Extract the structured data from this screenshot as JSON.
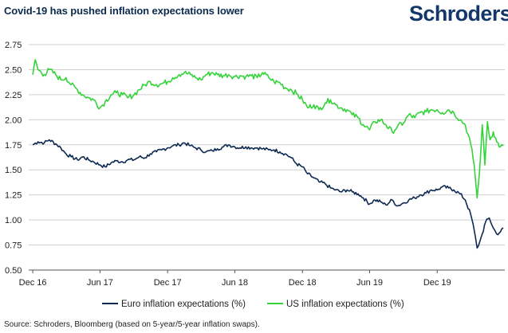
{
  "header": {
    "title": "Covid-19 has pushed inflation expectations lower",
    "logo_text": "Schroders"
  },
  "source": "Source: Schroders, Bloomberg (based on 5-year/5-year inflation swaps).",
  "colors": {
    "euro": "#0e2a52",
    "us": "#34d33a",
    "grid": "#cfcfcf",
    "axis": "#555555",
    "brand": "#14376a"
  },
  "chart_data": {
    "type": "line",
    "title": "Covid-19 has pushed inflation expectations lower",
    "xlabel": "",
    "ylabel": "",
    "ylim": [
      0.5,
      2.75
    ],
    "yticks": [
      "2.75",
      "2.50",
      "2.25",
      "2.00",
      "1.75",
      "1.50",
      "1.25",
      "1.00",
      "0.75",
      "0.50"
    ],
    "xticks": [
      "Dec 16",
      "Jun 17",
      "Dec 17",
      "Jun 18",
      "Dec 18",
      "Jun 19",
      "Dec 19"
    ],
    "x_range": [
      "2016-12",
      "2020-05"
    ],
    "grid": "horizontal",
    "legend_position": "bottom",
    "series": [
      {
        "name": "Euro inflation expectations (%)",
        "color": "#0e2a52",
        "points": [
          [
            "2016-12-01",
            1.75
          ],
          [
            "2016-12-15",
            1.78
          ],
          [
            "2017-01-01",
            1.77
          ],
          [
            "2017-01-15",
            1.8
          ],
          [
            "2017-02-01",
            1.76
          ],
          [
            "2017-02-15",
            1.72
          ],
          [
            "2017-03-01",
            1.66
          ],
          [
            "2017-03-15",
            1.63
          ],
          [
            "2017-04-01",
            1.6
          ],
          [
            "2017-04-15",
            1.63
          ],
          [
            "2017-05-01",
            1.6
          ],
          [
            "2017-05-15",
            1.58
          ],
          [
            "2017-06-01",
            1.55
          ],
          [
            "2017-06-15",
            1.53
          ],
          [
            "2017-07-01",
            1.57
          ],
          [
            "2017-07-15",
            1.59
          ],
          [
            "2017-08-01",
            1.58
          ],
          [
            "2017-08-15",
            1.6
          ],
          [
            "2017-09-01",
            1.6
          ],
          [
            "2017-09-15",
            1.63
          ],
          [
            "2017-10-01",
            1.62
          ],
          [
            "2017-10-15",
            1.66
          ],
          [
            "2017-11-01",
            1.68
          ],
          [
            "2017-11-15",
            1.7
          ],
          [
            "2017-12-01",
            1.72
          ],
          [
            "2017-12-15",
            1.74
          ],
          [
            "2018-01-01",
            1.75
          ],
          [
            "2018-01-15",
            1.77
          ],
          [
            "2018-02-01",
            1.74
          ],
          [
            "2018-02-15",
            1.72
          ],
          [
            "2018-03-01",
            1.7
          ],
          [
            "2018-03-15",
            1.68
          ],
          [
            "2018-04-01",
            1.69
          ],
          [
            "2018-04-15",
            1.71
          ],
          [
            "2018-05-01",
            1.73
          ],
          [
            "2018-05-15",
            1.75
          ],
          [
            "2018-06-01",
            1.73
          ],
          [
            "2018-06-15",
            1.72
          ],
          [
            "2018-07-01",
            1.73
          ],
          [
            "2018-07-15",
            1.72
          ],
          [
            "2018-08-01",
            1.72
          ],
          [
            "2018-08-15",
            1.71
          ],
          [
            "2018-09-01",
            1.7
          ],
          [
            "2018-09-15",
            1.7
          ],
          [
            "2018-10-01",
            1.68
          ],
          [
            "2018-10-15",
            1.66
          ],
          [
            "2018-11-01",
            1.62
          ],
          [
            "2018-11-15",
            1.56
          ],
          [
            "2018-12-01",
            1.53
          ],
          [
            "2018-12-15",
            1.46
          ],
          [
            "2019-01-01",
            1.42
          ],
          [
            "2019-01-15",
            1.38
          ],
          [
            "2019-02-01",
            1.36
          ],
          [
            "2019-02-15",
            1.32
          ],
          [
            "2019-03-01",
            1.3
          ],
          [
            "2019-03-15",
            1.28
          ],
          [
            "2019-04-01",
            1.3
          ],
          [
            "2019-04-15",
            1.28
          ],
          [
            "2019-05-01",
            1.26
          ],
          [
            "2019-05-15",
            1.22
          ],
          [
            "2019-06-01",
            1.16
          ],
          [
            "2019-06-15",
            1.2
          ],
          [
            "2019-07-01",
            1.18
          ],
          [
            "2019-07-15",
            1.15
          ],
          [
            "2019-08-01",
            1.2
          ],
          [
            "2019-08-15",
            1.14
          ],
          [
            "2019-09-01",
            1.17
          ],
          [
            "2019-09-15",
            1.2
          ],
          [
            "2019-10-01",
            1.22
          ],
          [
            "2019-10-15",
            1.25
          ],
          [
            "2019-11-01",
            1.27
          ],
          [
            "2019-11-15",
            1.3
          ],
          [
            "2019-12-01",
            1.3
          ],
          [
            "2019-12-15",
            1.33
          ],
          [
            "2020-01-01",
            1.32
          ],
          [
            "2020-01-15",
            1.3
          ],
          [
            "2020-02-01",
            1.26
          ],
          [
            "2020-02-15",
            1.2
          ],
          [
            "2020-03-01",
            1.05
          ],
          [
            "2020-03-10",
            0.9
          ],
          [
            "2020-03-18",
            0.72
          ],
          [
            "2020-03-25",
            0.78
          ],
          [
            "2020-04-01",
            0.86
          ],
          [
            "2020-04-10",
            0.98
          ],
          [
            "2020-04-20",
            1.02
          ],
          [
            "2020-05-01",
            0.92
          ],
          [
            "2020-05-10",
            0.86
          ],
          [
            "2020-05-20",
            0.88
          ],
          [
            "2020-05-28",
            0.92
          ]
        ]
      },
      {
        "name": "US inflation expectations (%)",
        "color": "#34d33a",
        "points": [
          [
            "2016-12-01",
            2.45
          ],
          [
            "2016-12-08",
            2.6
          ],
          [
            "2016-12-15",
            2.5
          ],
          [
            "2017-01-01",
            2.45
          ],
          [
            "2017-01-15",
            2.5
          ],
          [
            "2017-02-01",
            2.45
          ],
          [
            "2017-02-15",
            2.4
          ],
          [
            "2017-03-01",
            2.42
          ],
          [
            "2017-03-15",
            2.35
          ],
          [
            "2017-04-01",
            2.3
          ],
          [
            "2017-04-15",
            2.25
          ],
          [
            "2017-05-01",
            2.22
          ],
          [
            "2017-05-15",
            2.2
          ],
          [
            "2017-06-01",
            2.12
          ],
          [
            "2017-06-15",
            2.18
          ],
          [
            "2017-07-01",
            2.25
          ],
          [
            "2017-07-15",
            2.27
          ],
          [
            "2017-08-01",
            2.25
          ],
          [
            "2017-08-15",
            2.22
          ],
          [
            "2017-09-01",
            2.25
          ],
          [
            "2017-09-15",
            2.3
          ],
          [
            "2017-10-01",
            2.35
          ],
          [
            "2017-10-15",
            2.38
          ],
          [
            "2017-11-01",
            2.35
          ],
          [
            "2017-11-15",
            2.36
          ],
          [
            "2017-12-01",
            2.38
          ],
          [
            "2017-12-15",
            2.42
          ],
          [
            "2018-01-01",
            2.45
          ],
          [
            "2018-01-15",
            2.47
          ],
          [
            "2018-02-01",
            2.45
          ],
          [
            "2018-02-15",
            2.42
          ],
          [
            "2018-03-01",
            2.4
          ],
          [
            "2018-03-15",
            2.45
          ],
          [
            "2018-04-01",
            2.47
          ],
          [
            "2018-04-15",
            2.45
          ],
          [
            "2018-05-01",
            2.44
          ],
          [
            "2018-05-15",
            2.45
          ],
          [
            "2018-06-01",
            2.43
          ],
          [
            "2018-06-15",
            2.44
          ],
          [
            "2018-07-01",
            2.43
          ],
          [
            "2018-07-15",
            2.44
          ],
          [
            "2018-08-01",
            2.42
          ],
          [
            "2018-08-15",
            2.47
          ],
          [
            "2018-09-01",
            2.42
          ],
          [
            "2018-09-15",
            2.38
          ],
          [
            "2018-10-01",
            2.37
          ],
          [
            "2018-10-15",
            2.32
          ],
          [
            "2018-11-01",
            2.3
          ],
          [
            "2018-11-15",
            2.26
          ],
          [
            "2018-12-01",
            2.2
          ],
          [
            "2018-12-15",
            2.12
          ],
          [
            "2019-01-01",
            2.15
          ],
          [
            "2019-01-15",
            2.1
          ],
          [
            "2019-02-01",
            2.17
          ],
          [
            "2019-02-15",
            2.2
          ],
          [
            "2019-03-01",
            2.15
          ],
          [
            "2019-03-15",
            2.12
          ],
          [
            "2019-04-01",
            2.1
          ],
          [
            "2019-04-15",
            2.05
          ],
          [
            "2019-05-01",
            2.02
          ],
          [
            "2019-05-15",
            1.95
          ],
          [
            "2019-06-01",
            1.9
          ],
          [
            "2019-06-15",
            1.98
          ],
          [
            "2019-07-01",
            2.0
          ],
          [
            "2019-07-15",
            1.95
          ],
          [
            "2019-08-01",
            1.88
          ],
          [
            "2019-08-15",
            1.93
          ],
          [
            "2019-09-01",
            1.97
          ],
          [
            "2019-09-15",
            2.05
          ],
          [
            "2019-10-01",
            2.02
          ],
          [
            "2019-10-15",
            2.07
          ],
          [
            "2019-11-01",
            2.08
          ],
          [
            "2019-11-15",
            2.1
          ],
          [
            "2019-12-01",
            2.1
          ],
          [
            "2019-12-15",
            2.07
          ],
          [
            "2020-01-01",
            2.1
          ],
          [
            "2020-01-15",
            2.07
          ],
          [
            "2020-02-01",
            2.0
          ],
          [
            "2020-02-15",
            1.95
          ],
          [
            "2020-03-01",
            1.75
          ],
          [
            "2020-03-10",
            1.55
          ],
          [
            "2020-03-18",
            1.22
          ],
          [
            "2020-03-24",
            1.45
          ],
          [
            "2020-04-01",
            1.95
          ],
          [
            "2020-04-08",
            1.55
          ],
          [
            "2020-04-15",
            1.98
          ],
          [
            "2020-04-22",
            1.8
          ],
          [
            "2020-05-01",
            1.88
          ],
          [
            "2020-05-10",
            1.78
          ],
          [
            "2020-05-20",
            1.73
          ],
          [
            "2020-05-28",
            1.74
          ]
        ]
      }
    ]
  }
}
